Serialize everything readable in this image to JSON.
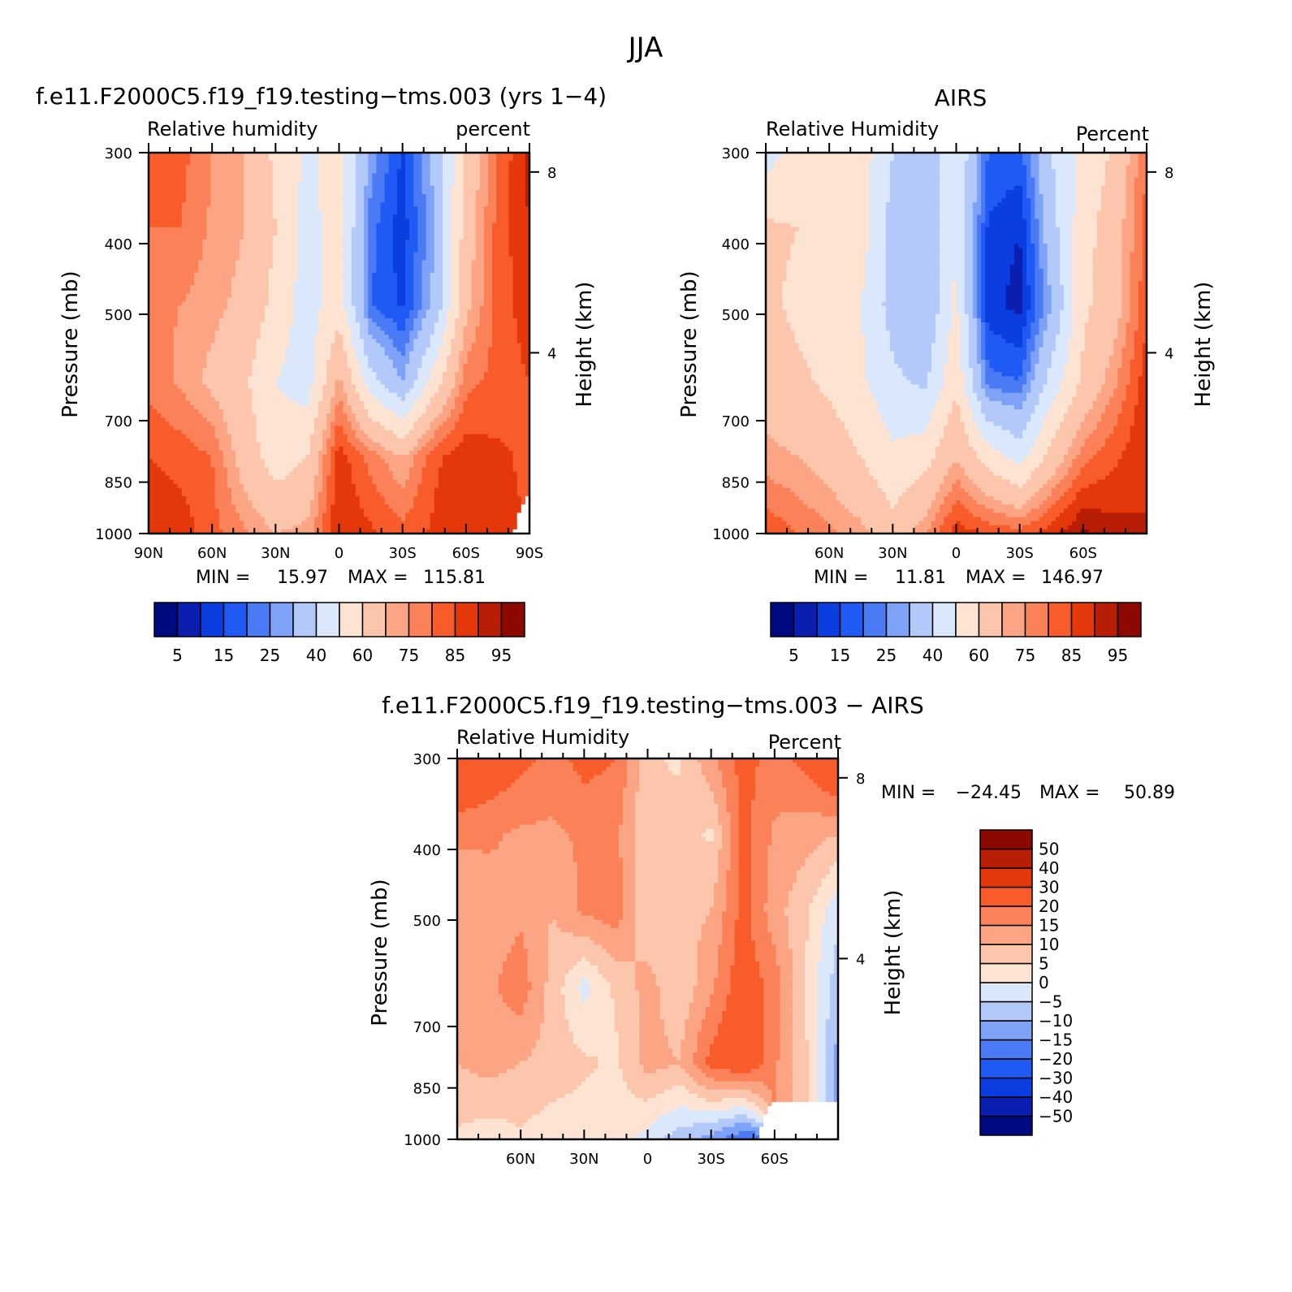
{
  "figure": {
    "title": "JJA"
  },
  "colors": {
    "rh_palette": [
      "#000a80",
      "#0a1fb0",
      "#0a3ee0",
      "#1f5af5",
      "#4a7bf5",
      "#7ea2f7",
      "#b3c9f9",
      "#dbe8fc",
      "#fde4d2",
      "#fcc6ac",
      "#fba584",
      "#fb8258",
      "#f85c2a",
      "#e5380a",
      "#b81d05",
      "#8c0800"
    ],
    "diff_palette": [
      "#000a80",
      "#0a1fb0",
      "#0a3ee0",
      "#1f5af5",
      "#4a7bf5",
      "#7ea2f7",
      "#b3c9f9",
      "#dbe8fc",
      "#fde4d2",
      "#fcc6ac",
      "#fba584",
      "#fb8258",
      "#f85c2a",
      "#e5380a",
      "#b81d05",
      "#8c0800"
    ],
    "missing": "#ffffff"
  },
  "chart_data": [
    {
      "type": "heatmap",
      "title": "f.e11.F2000C5.f19_f19.testing−tms.003 (yrs 1−4)",
      "subtitle_left": "Relative humidity",
      "subtitle_right": "percent",
      "ylabel": "Pressure (mb)",
      "ylabel_right": "Height (km)",
      "stats": {
        "min_label": "MIN =",
        "min_value": "15.97",
        "max_label": "MAX =",
        "max_value": "115.81"
      },
      "x_ticks": [
        {
          "lat": 90,
          "label": "90N"
        },
        {
          "lat": 60,
          "label": "60N"
        },
        {
          "lat": 30,
          "label": "30N"
        },
        {
          "lat": 0,
          "label": "0"
        },
        {
          "lat": -30,
          "label": "30S"
        },
        {
          "lat": -60,
          "label": "60S"
        },
        {
          "lat": -90,
          "label": "90S"
        }
      ],
      "xlim": [
        90,
        -90
      ],
      "y_ticks": [
        {
          "p": 300,
          "label": "300"
        },
        {
          "p": 400,
          "label": "400"
        },
        {
          "p": 500,
          "label": "500"
        },
        {
          "p": 700,
          "label": "700"
        },
        {
          "p": 850,
          "label": "850"
        },
        {
          "p": 1000,
          "label": "1000"
        }
      ],
      "ylim": [
        1000,
        300
      ],
      "yscale": "log",
      "height_ticks": [
        {
          "km": 8,
          "label": "8"
        },
        {
          "km": 4,
          "label": "4"
        }
      ],
      "levels": [
        5,
        10,
        15,
        20,
        25,
        30,
        40,
        50,
        60,
        70,
        75,
        80,
        85,
        90,
        95
      ],
      "colorbar_labels": [
        "5",
        "15",
        "25",
        "40",
        "60",
        "75",
        "85",
        "95"
      ],
      "grid_lat": [
        90,
        75,
        60,
        45,
        30,
        15,
        0,
        -15,
        -30,
        -45,
        -60,
        -75,
        -90
      ],
      "grid_p": [
        300,
        400,
        500,
        700,
        850,
        1000
      ],
      "values": [
        [
          80,
          82,
          75,
          70,
          58,
          48,
          55,
          28,
          14,
          32,
          62,
          80,
          92
        ],
        [
          80,
          80,
          74,
          70,
          60,
          46,
          55,
          22,
          12,
          30,
          65,
          82,
          90
        ],
        [
          76,
          75,
          72,
          68,
          57,
          45,
          56,
          20,
          14,
          32,
          68,
          82,
          88
        ],
        [
          78,
          74,
          68,
          62,
          50,
          45,
          72,
          44,
          30,
          55,
          78,
          82,
          85
        ],
        [
          85,
          83,
          80,
          66,
          55,
          60,
          88,
          78,
          70,
          84,
          88,
          86,
          84
        ],
        [
          90,
          88,
          82,
          76,
          70,
          72,
          90,
          86,
          82,
          86,
          88,
          86,
          null
        ]
      ]
    },
    {
      "type": "heatmap",
      "title": "AIRS",
      "subtitle_left": "Relative Humidity",
      "subtitle_right": "Percent",
      "ylabel": "Pressure (mb)",
      "ylabel_right": "Height (km)",
      "stats": {
        "min_label": "MIN =",
        "min_value": "11.81",
        "max_label": "MAX =",
        "max_value": "146.97"
      },
      "x_ticks": [
        {
          "lat": 60,
          "label": "60N"
        },
        {
          "lat": 30,
          "label": "30N"
        },
        {
          "lat": 0,
          "label": "0"
        },
        {
          "lat": -30,
          "label": "30S"
        },
        {
          "lat": -60,
          "label": "60S"
        }
      ],
      "xlim": [
        90,
        -90
      ],
      "y_ticks": [
        {
          "p": 300,
          "label": "300"
        },
        {
          "p": 400,
          "label": "400"
        },
        {
          "p": 500,
          "label": "500"
        },
        {
          "p": 700,
          "label": "700"
        },
        {
          "p": 850,
          "label": "850"
        },
        {
          "p": 1000,
          "label": "1000"
        }
      ],
      "ylim": [
        1000,
        300
      ],
      "yscale": "log",
      "height_ticks": [
        {
          "km": 8,
          "label": "8"
        },
        {
          "km": 4,
          "label": "4"
        }
      ],
      "levels": [
        5,
        10,
        15,
        20,
        25,
        30,
        40,
        50,
        60,
        70,
        75,
        80,
        85,
        90,
        95
      ],
      "colorbar_labels": [
        "5",
        "15",
        "25",
        "40",
        "60",
        "75",
        "85",
        "95"
      ],
      "grid_lat": [
        90,
        75,
        60,
        45,
        30,
        15,
        0,
        -15,
        -30,
        -45,
        -60,
        -75,
        -90
      ],
      "grid_p": [
        300,
        400,
        500,
        700,
        850,
        1000
      ],
      "values": [
        [
          45,
          55,
          55,
          55,
          40,
          32,
          50,
          20,
          18,
          40,
          52,
          62,
          80
        ],
        [
          62,
          60,
          56,
          55,
          36,
          30,
          50,
          14,
          10,
          36,
          56,
          66,
          82
        ],
        [
          62,
          58,
          56,
          50,
          36,
          30,
          52,
          12,
          8,
          30,
          58,
          66,
          84
        ],
        [
          66,
          62,
          58,
          52,
          42,
          38,
          58,
          22,
          20,
          44,
          62,
          74,
          88
        ],
        [
          72,
          70,
          66,
          60,
          52,
          56,
          70,
          56,
          46,
          64,
          78,
          84,
          90
        ],
        [
          84,
          80,
          76,
          72,
          64,
          74,
          88,
          84,
          82,
          88,
          96,
          92,
          90
        ]
      ]
    },
    {
      "type": "heatmap",
      "title": "f.e11.F2000C5.f19_f19.testing−tms.003 − AIRS",
      "subtitle_left": "Relative Humidity",
      "subtitle_right": "Percent",
      "ylabel": "Pressure (mb)",
      "ylabel_right": "Height (km)",
      "stats": {
        "min_label": "MIN =",
        "min_value": "−24.45",
        "max_label": "MAX =",
        "max_value": "50.89"
      },
      "x_ticks": [
        {
          "lat": 60,
          "label": "60N"
        },
        {
          "lat": 30,
          "label": "30N"
        },
        {
          "lat": 0,
          "label": "0"
        },
        {
          "lat": -30,
          "label": "30S"
        },
        {
          "lat": -60,
          "label": "60S"
        }
      ],
      "xlim": [
        90,
        -90
      ],
      "y_ticks": [
        {
          "p": 300,
          "label": "300"
        },
        {
          "p": 400,
          "label": "400"
        },
        {
          "p": 500,
          "label": "500"
        },
        {
          "p": 700,
          "label": "700"
        },
        {
          "p": 850,
          "label": "850"
        },
        {
          "p": 1000,
          "label": "1000"
        }
      ],
      "ylim": [
        1000,
        300
      ],
      "yscale": "log",
      "height_ticks": [
        {
          "km": 8,
          "label": "8"
        },
        {
          "km": 4,
          "label": "4"
        }
      ],
      "levels": [
        -50,
        -40,
        -30,
        -20,
        -15,
        -10,
        -5,
        0,
        5,
        10,
        15,
        20,
        30,
        40,
        50
      ],
      "colorbar_labels": [
        "−50",
        "−40",
        "−30",
        "−20",
        "−15",
        "−10",
        "−5",
        "0",
        "5",
        "10",
        "15",
        "20",
        "30",
        "40",
        "50"
      ],
      "grid_lat": [
        90,
        75,
        60,
        45,
        30,
        15,
        0,
        -15,
        -30,
        -45,
        -60,
        -75,
        -90
      ],
      "grid_p": [
        300,
        400,
        500,
        700,
        850,
        1000
      ],
      "values": [
        [
          30,
          25,
          22,
          18,
          22,
          20,
          6,
          4,
          14,
          22,
          18,
          22,
          30
        ],
        [
          16,
          16,
          14,
          14,
          16,
          16,
          6,
          8,
          4,
          22,
          14,
          12,
          10
        ],
        [
          10,
          12,
          14,
          10,
          16,
          18,
          6,
          8,
          10,
          22,
          12,
          6,
          -4
        ],
        [
          12,
          14,
          18,
          8,
          -2,
          6,
          12,
          6,
          14,
          24,
          18,
          4,
          -8
        ],
        [
          10,
          12,
          10,
          8,
          6,
          4,
          12,
          10,
          22,
          26,
          16,
          6,
          -12
        ],
        [
          4,
          2,
          4,
          2,
          2,
          2,
          -2,
          -8,
          -12,
          -20,
          null,
          null,
          null
        ]
      ]
    }
  ]
}
